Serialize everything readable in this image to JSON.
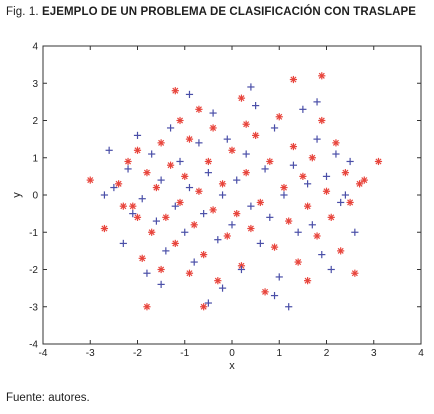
{
  "figure": {
    "label": "Fig. 1.",
    "title": "EJEMPLO DE UN PROBLEMA DE CLASIFICACIÓN CON TRASLAPE",
    "caption": "Fuente: autores."
  },
  "chart_data": {
    "type": "scatter",
    "xlabel": "x",
    "ylabel": "y",
    "xlim": [
      -4,
      4
    ],
    "ylim": [
      -4,
      4
    ],
    "xticks": [
      "-4",
      "-3",
      "-2",
      "-1",
      "0",
      "1",
      "2",
      "3",
      "4"
    ],
    "yticks": [
      "-4",
      "-3",
      "-2",
      "-1",
      "0",
      "1",
      "2",
      "3",
      "4"
    ],
    "grid": false,
    "colors": {
      "class_a": "#e8453c",
      "class_b": "#4a4fa8"
    },
    "series": [
      {
        "marker": "asterisk",
        "color": "#e8453c",
        "points": [
          [
            -3.0,
            0.4
          ],
          [
            -2.7,
            -0.9
          ],
          [
            -2.4,
            0.3
          ],
          [
            -2.3,
            -0.3
          ],
          [
            -2.2,
            0.9
          ],
          [
            -2.1,
            -0.3
          ],
          [
            -2.0,
            1.2
          ],
          [
            -1.9,
            -1.7
          ],
          [
            -1.8,
            0.6
          ],
          [
            -1.8,
            -3.0
          ],
          [
            -1.7,
            -1.0
          ],
          [
            -1.6,
            0.2
          ],
          [
            -1.5,
            -2.0
          ],
          [
            -1.5,
            1.4
          ],
          [
            -1.4,
            -0.6
          ],
          [
            -1.3,
            0.8
          ],
          [
            -1.2,
            -1.3
          ],
          [
            -1.1,
            2.0
          ],
          [
            -1.1,
            -0.2
          ],
          [
            -1.0,
            0.5
          ],
          [
            -0.9,
            -2.1
          ],
          [
            -0.9,
            1.5
          ],
          [
            -0.8,
            -0.8
          ],
          [
            -0.7,
            0.1
          ],
          [
            -0.7,
            2.3
          ],
          [
            -0.6,
            -1.6
          ],
          [
            -0.5,
            0.9
          ],
          [
            -0.4,
            -0.4
          ],
          [
            -0.4,
            1.8
          ],
          [
            -0.3,
            -2.3
          ],
          [
            -0.2,
            0.3
          ],
          [
            -0.1,
            -1.1
          ],
          [
            0.0,
            1.2
          ],
          [
            0.1,
            -0.5
          ],
          [
            0.2,
            2.6
          ],
          [
            0.2,
            -1.9
          ],
          [
            0.3,
            0.6
          ],
          [
            0.4,
            -0.9
          ],
          [
            0.5,
            1.6
          ],
          [
            0.6,
            -0.2
          ],
          [
            0.7,
            -2.6
          ],
          [
            0.8,
            0.9
          ],
          [
            0.9,
            -1.4
          ],
          [
            1.0,
            2.1
          ],
          [
            1.1,
            0.2
          ],
          [
            1.2,
            -0.7
          ],
          [
            1.3,
            1.3
          ],
          [
            1.3,
            3.1
          ],
          [
            1.4,
            -1.8
          ],
          [
            1.5,
            0.5
          ],
          [
            1.6,
            -0.3
          ],
          [
            1.7,
            1.0
          ],
          [
            1.8,
            -1.1
          ],
          [
            1.9,
            2.0
          ],
          [
            1.9,
            3.2
          ],
          [
            2.0,
            0.1
          ],
          [
            2.1,
            -0.6
          ],
          [
            2.2,
            1.4
          ],
          [
            2.3,
            -1.5
          ],
          [
            2.4,
            0.6
          ],
          [
            2.5,
            -0.2
          ],
          [
            2.6,
            -2.1
          ],
          [
            2.8,
            0.4
          ],
          [
            3.1,
            0.9
          ],
          [
            1.6,
            -2.3
          ],
          [
            -1.2,
            2.8
          ],
          [
            -0.6,
            -3.0
          ],
          [
            0.3,
            1.9
          ],
          [
            -2.0,
            -0.6
          ],
          [
            2.7,
            0.3
          ]
        ]
      },
      {
        "marker": "plus",
        "color": "#4a4fa8",
        "points": [
          [
            -2.6,
            1.2
          ],
          [
            -2.5,
            0.2
          ],
          [
            -2.3,
            -1.3
          ],
          [
            -2.2,
            0.7
          ],
          [
            -2.1,
            -0.5
          ],
          [
            -2.0,
            1.6
          ],
          [
            -1.9,
            -0.1
          ],
          [
            -1.8,
            -2.1
          ],
          [
            -1.7,
            1.1
          ],
          [
            -1.6,
            -0.7
          ],
          [
            -1.5,
            0.4
          ],
          [
            -1.4,
            -1.5
          ],
          [
            -1.3,
            1.8
          ],
          [
            -1.2,
            -0.3
          ],
          [
            -1.1,
            0.9
          ],
          [
            -1.0,
            -1.0
          ],
          [
            -0.9,
            2.7
          ],
          [
            -0.9,
            0.2
          ],
          [
            -0.8,
            -1.8
          ],
          [
            -0.7,
            1.4
          ],
          [
            -0.6,
            -0.5
          ],
          [
            -0.5,
            0.6
          ],
          [
            -0.5,
            -2.9
          ],
          [
            -0.4,
            2.2
          ],
          [
            -0.3,
            -1.2
          ],
          [
            -0.2,
            0.0
          ],
          [
            -0.1,
            1.5
          ],
          [
            0.0,
            -0.8
          ],
          [
            0.1,
            0.4
          ],
          [
            0.2,
            -2.0
          ],
          [
            0.3,
            1.1
          ],
          [
            0.4,
            -0.3
          ],
          [
            0.5,
            2.4
          ],
          [
            0.6,
            -1.3
          ],
          [
            0.7,
            0.7
          ],
          [
            0.8,
            -0.6
          ],
          [
            0.9,
            1.8
          ],
          [
            1.0,
            -2.2
          ],
          [
            1.1,
            0.0
          ],
          [
            1.2,
            -3.0
          ],
          [
            1.3,
            0.8
          ],
          [
            1.4,
            -1.0
          ],
          [
            1.5,
            2.3
          ],
          [
            1.6,
            0.3
          ],
          [
            1.7,
            -0.8
          ],
          [
            1.8,
            1.5
          ],
          [
            1.9,
            -1.6
          ],
          [
            2.0,
            0.5
          ],
          [
            2.1,
            -2.0
          ],
          [
            2.2,
            1.1
          ],
          [
            2.3,
            -0.2
          ],
          [
            2.5,
            0.9
          ],
          [
            2.6,
            -1.0
          ],
          [
            1.8,
            2.5
          ],
          [
            -1.5,
            -2.4
          ],
          [
            0.4,
            2.9
          ],
          [
            -0.2,
            -2.5
          ],
          [
            2.4,
            0.0
          ],
          [
            -2.7,
            0.0
          ],
          [
            0.9,
            -2.7
          ]
        ]
      }
    ]
  }
}
